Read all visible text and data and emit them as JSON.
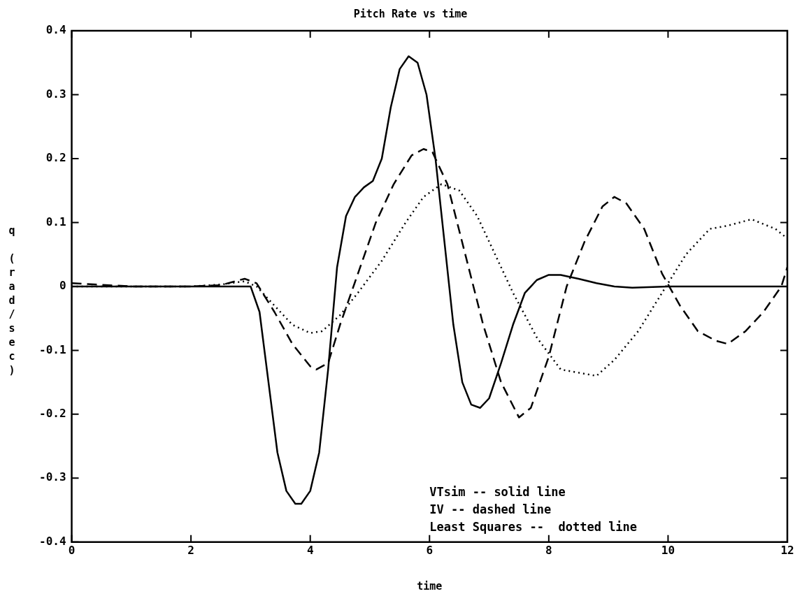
{
  "chart_data": {
    "type": "line",
    "title": "Pitch Rate vs time",
    "xlabel": "time",
    "ylabel": "q (rad/sec)",
    "xlim": [
      0,
      12
    ],
    "xticks": [
      0,
      2,
      4,
      6,
      8,
      10,
      12
    ],
    "ylim": [
      -0.4,
      0.4
    ],
    "yticks": [
      -0.4,
      -0.3,
      -0.2,
      -0.1,
      0,
      0.1,
      0.2,
      0.3,
      0.4
    ],
    "grid": false,
    "legend": false,
    "marker": "none",
    "series": [
      {
        "color": "#000000",
        "line_style": "solid",
        "x": [
          0,
          1,
          2,
          3.0,
          3.15,
          3.3,
          3.45,
          3.6,
          3.75,
          3.85,
          4.0,
          4.15,
          4.3,
          4.45,
          4.6,
          4.75,
          4.9,
          5.05,
          5.2,
          5.35,
          5.5,
          5.65,
          5.8,
          5.95,
          6.1,
          6.25,
          6.4,
          6.55,
          6.7,
          6.85,
          7.0,
          7.2,
          7.4,
          7.6,
          7.8,
          8.0,
          8.2,
          8.5,
          8.8,
          9.1,
          9.4,
          10,
          11,
          12
        ],
        "values": [
          0,
          0,
          0,
          0,
          -0.04,
          -0.15,
          -0.26,
          -0.32,
          -0.34,
          -0.34,
          -0.32,
          -0.26,
          -0.13,
          0.03,
          0.11,
          0.14,
          0.155,
          0.165,
          0.2,
          0.28,
          0.34,
          0.36,
          0.35,
          0.3,
          0.2,
          0.07,
          -0.06,
          -0.15,
          -0.185,
          -0.19,
          -0.175,
          -0.12,
          -0.06,
          -0.01,
          0.01,
          0.018,
          0.018,
          0.012,
          0.005,
          0,
          -0.002,
          0,
          0,
          0
        ]
      },
      {
        "color": "#000000",
        "line_style": "dashed",
        "x": [
          0,
          1,
          2,
          2.5,
          2.9,
          3.1,
          3.4,
          3.7,
          4.0,
          4.1,
          4.3,
          4.5,
          4.8,
          5.1,
          5.4,
          5.7,
          5.9,
          6.05,
          6.3,
          6.6,
          6.9,
          7.2,
          7.5,
          7.7,
          8.0,
          8.3,
          8.6,
          8.9,
          9.1,
          9.3,
          9.6,
          9.9,
          10.2,
          10.5,
          10.8,
          11.0,
          11.3,
          11.6,
          11.9,
          12
        ],
        "values": [
          0.005,
          0,
          0,
          0.002,
          0.012,
          0.005,
          -0.04,
          -0.09,
          -0.125,
          -0.13,
          -0.12,
          -0.06,
          0.02,
          0.1,
          0.16,
          0.205,
          0.215,
          0.21,
          0.16,
          0.05,
          -0.06,
          -0.15,
          -0.205,
          -0.19,
          -0.11,
          0.0,
          0.07,
          0.125,
          0.14,
          0.13,
          0.09,
          0.02,
          -0.03,
          -0.07,
          -0.085,
          -0.09,
          -0.07,
          -0.04,
          0.0,
          0.03
        ]
      },
      {
        "color": "#000000",
        "line_style": "dotted",
        "x": [
          0,
          1,
          2,
          2.5,
          2.9,
          3.1,
          3.4,
          3.7,
          4.0,
          4.2,
          4.5,
          4.8,
          5.2,
          5.6,
          5.9,
          6.2,
          6.5,
          6.8,
          7.1,
          7.4,
          7.8,
          8.2,
          8.5,
          8.8,
          9.1,
          9.5,
          9.9,
          10.3,
          10.7,
          11.0,
          11.4,
          11.8,
          12
        ],
        "values": [
          0,
          0,
          0,
          0.003,
          0.008,
          0.0,
          -0.03,
          -0.06,
          -0.073,
          -0.07,
          -0.045,
          -0.01,
          0.04,
          0.1,
          0.14,
          0.16,
          0.15,
          0.11,
          0.05,
          -0.01,
          -0.08,
          -0.13,
          -0.135,
          -0.14,
          -0.115,
          -0.07,
          -0.01,
          0.05,
          0.09,
          0.095,
          0.105,
          0.09,
          0.075
        ]
      }
    ],
    "annotations": [
      "VTsim -- solid line",
      "IV -- dashed line",
      "Least Squares --  dotted line"
    ]
  }
}
